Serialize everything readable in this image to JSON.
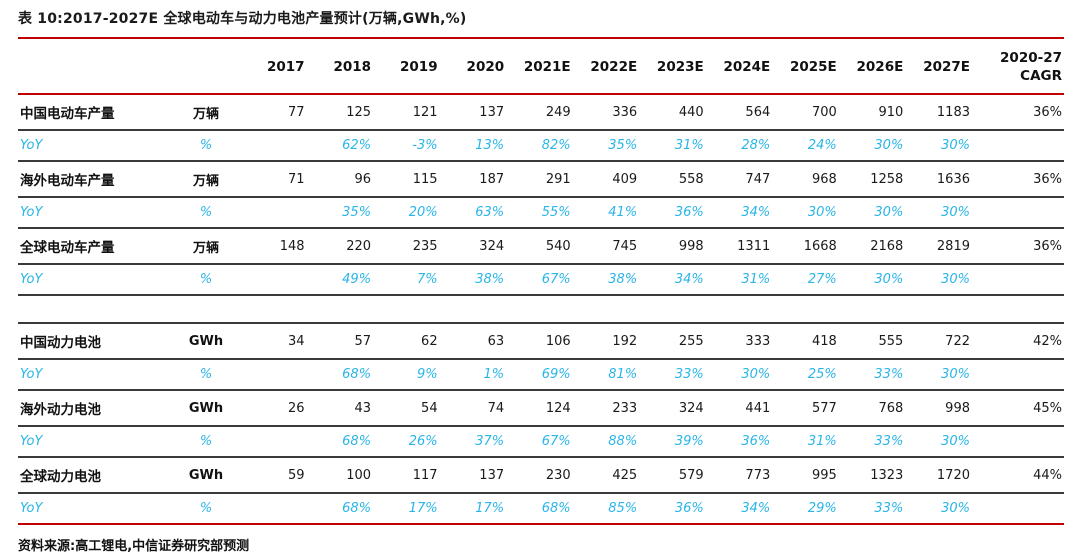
{
  "title": "表 10:2017-2027E 全球电动车与动力电池产量预计(万辆,GWh,%)",
  "source_note": "资料来源:高工锂电,中信证券研究部预测",
  "colors": {
    "accent_red": "#C00000",
    "yoy_blue": "#29B5E8",
    "row_line_dark": "#3A3A3A",
    "text_black": "#111111"
  },
  "chart_data": {
    "type": "table",
    "title": "表 10:2017-2027E 全球电动车与动力电池产量预计(万辆,GWh,%)",
    "header": {
      "years": [
        "2017",
        "2018",
        "2019",
        "2020",
        "2021E",
        "2022E",
        "2023E",
        "2024E",
        "2025E",
        "2026E",
        "2027E"
      ],
      "cagr_line1": "2020-27",
      "cagr_line2": "CAGR"
    },
    "rows": [
      {
        "type": "data",
        "label": "中国电动车产量",
        "unit": "万辆",
        "values": [
          "77",
          "125",
          "121",
          "137",
          "249",
          "336",
          "440",
          "564",
          "700",
          "910",
          "1183"
        ],
        "cagr": "36%"
      },
      {
        "type": "yoy",
        "label": "YoY",
        "unit": "%",
        "values": [
          "",
          "62%",
          "-3%",
          "13%",
          "82%",
          "35%",
          "31%",
          "28%",
          "24%",
          "30%",
          "30%"
        ],
        "cagr": ""
      },
      {
        "type": "data",
        "label": "海外电动车产量",
        "unit": "万辆",
        "values": [
          "71",
          "96",
          "115",
          "187",
          "291",
          "409",
          "558",
          "747",
          "968",
          "1258",
          "1636"
        ],
        "cagr": "36%"
      },
      {
        "type": "yoy",
        "label": "YoY",
        "unit": "%",
        "values": [
          "",
          "35%",
          "20%",
          "63%",
          "55%",
          "41%",
          "36%",
          "34%",
          "30%",
          "30%",
          "30%"
        ],
        "cagr": ""
      },
      {
        "type": "data",
        "label": "全球电动车产量",
        "unit": "万辆",
        "values": [
          "148",
          "220",
          "235",
          "324",
          "540",
          "745",
          "998",
          "1311",
          "1668",
          "2168",
          "2819"
        ],
        "cagr": "36%"
      },
      {
        "type": "yoy",
        "label": "YoY",
        "unit": "%",
        "values": [
          "",
          "49%",
          "7%",
          "38%",
          "67%",
          "38%",
          "34%",
          "31%",
          "27%",
          "30%",
          "30%"
        ],
        "cagr": ""
      },
      {
        "type": "spacer"
      },
      {
        "type": "data",
        "label": "中国动力电池",
        "unit": "GWh",
        "values": [
          "34",
          "57",
          "62",
          "63",
          "106",
          "192",
          "255",
          "333",
          "418",
          "555",
          "722"
        ],
        "cagr": "42%"
      },
      {
        "type": "yoy",
        "label": "YoY",
        "unit": "%",
        "values": [
          "",
          "68%",
          "9%",
          "1%",
          "69%",
          "81%",
          "33%",
          "30%",
          "25%",
          "33%",
          "30%"
        ],
        "cagr": ""
      },
      {
        "type": "data",
        "label": "海外动力电池",
        "unit": "GWh",
        "values": [
          "26",
          "43",
          "54",
          "74",
          "124",
          "233",
          "324",
          "441",
          "577",
          "768",
          "998"
        ],
        "cagr": "45%"
      },
      {
        "type": "yoy",
        "label": "YoY",
        "unit": "%",
        "values": [
          "",
          "68%",
          "26%",
          "37%",
          "67%",
          "88%",
          "39%",
          "36%",
          "31%",
          "33%",
          "30%"
        ],
        "cagr": ""
      },
      {
        "type": "data",
        "label": "全球动力电池",
        "unit": "GWh",
        "values": [
          "59",
          "100",
          "117",
          "137",
          "230",
          "425",
          "579",
          "773",
          "995",
          "1323",
          "1720"
        ],
        "cagr": "44%"
      },
      {
        "type": "yoy",
        "label": "YoY",
        "unit": "%",
        "values": [
          "",
          "68%",
          "17%",
          "17%",
          "68%",
          "85%",
          "36%",
          "34%",
          "29%",
          "33%",
          "30%"
        ],
        "cagr": ""
      }
    ],
    "source": "资料来源:高工锂电,中信证券研究部预测"
  }
}
